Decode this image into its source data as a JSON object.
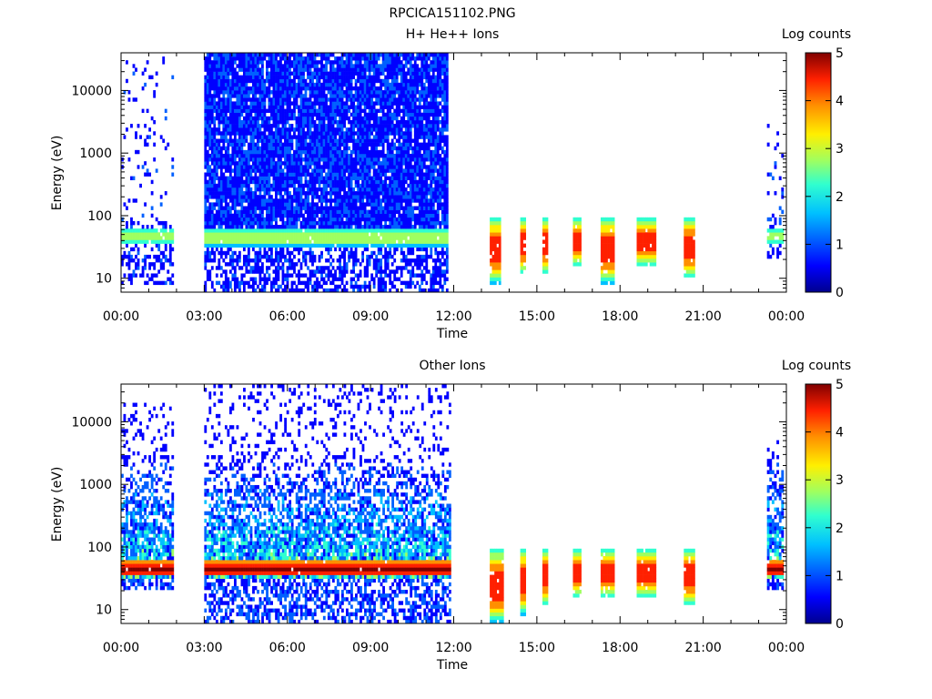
{
  "figure": {
    "title": "RPCICA151102.PNG"
  },
  "colormap": [
    "#00008f",
    "#0000ff",
    "#0060ff",
    "#00c0ff",
    "#30ffcf",
    "#9fff60",
    "#ffef00",
    "#ff8f00",
    "#ff2000",
    "#800000"
  ],
  "chart_data": [
    {
      "type": "heatmap",
      "title": "H+ He++ Ions",
      "xlabel": "Time",
      "ylabel": "Energy (eV)",
      "x_ticks": [
        "00:00",
        "03:00",
        "06:00",
        "09:00",
        "12:00",
        "15:00",
        "18:00",
        "21:00",
        "00:00"
      ],
      "x_range_hours": [
        0,
        24
      ],
      "y_scale": "log",
      "y_ticks": [
        "10",
        "100",
        "1000",
        "10000"
      ],
      "y_range": [
        6,
        40000
      ],
      "colorbar": {
        "label": "Log counts",
        "ticks": [
          "0",
          "1",
          "2",
          "3",
          "4",
          "5"
        ],
        "range": [
          0,
          5
        ]
      },
      "blocks": [
        {
          "start": 0.0,
          "end": 1.9,
          "e_min": 8,
          "e_max": 35000,
          "intensity": "low_with_band"
        },
        {
          "start": 3.0,
          "end": 11.8,
          "e_min": 6,
          "e_max": 40000,
          "intensity": "broad"
        },
        {
          "start": 13.3,
          "end": 13.7,
          "e_min": 8,
          "e_max": 100,
          "intensity": "burst"
        },
        {
          "start": 14.4,
          "end": 14.6,
          "e_min": 12,
          "e_max": 100,
          "intensity": "burst"
        },
        {
          "start": 15.2,
          "end": 15.4,
          "e_min": 12,
          "e_max": 100,
          "intensity": "burst"
        },
        {
          "start": 16.3,
          "end": 16.6,
          "e_min": 15,
          "e_max": 100,
          "intensity": "burst"
        },
        {
          "start": 17.3,
          "end": 17.8,
          "e_min": 8,
          "e_max": 100,
          "intensity": "burst"
        },
        {
          "start": 18.6,
          "end": 19.3,
          "e_min": 15,
          "e_max": 100,
          "intensity": "burst"
        },
        {
          "start": 20.3,
          "end": 20.7,
          "e_min": 10,
          "e_max": 100,
          "intensity": "burst"
        },
        {
          "start": 23.3,
          "end": 23.9,
          "e_min": 20,
          "e_max": 3000,
          "intensity": "low_with_band"
        }
      ]
    },
    {
      "type": "heatmap",
      "title": "Other Ions",
      "xlabel": "Time",
      "ylabel": "Energy (eV)",
      "x_ticks": [
        "00:00",
        "03:00",
        "06:00",
        "09:00",
        "12:00",
        "15:00",
        "18:00",
        "21:00",
        "00:00"
      ],
      "x_range_hours": [
        0,
        24
      ],
      "y_scale": "log",
      "y_ticks": [
        "10",
        "100",
        "1000",
        "10000"
      ],
      "y_range": [
        6,
        40000
      ],
      "colorbar": {
        "label": "Log counts",
        "ticks": [
          "0",
          "1",
          "2",
          "3",
          "4",
          "5"
        ],
        "range": [
          0,
          5
        ]
      },
      "blocks": [
        {
          "start": 0.0,
          "end": 1.9,
          "e_min": 20,
          "e_max": 20000,
          "intensity": "hot_band"
        },
        {
          "start": 3.0,
          "end": 11.9,
          "e_min": 6,
          "e_max": 40000,
          "intensity": "hot_band"
        },
        {
          "start": 13.3,
          "end": 13.8,
          "e_min": 6,
          "e_max": 100,
          "intensity": "burst"
        },
        {
          "start": 14.4,
          "end": 14.6,
          "e_min": 8,
          "e_max": 100,
          "intensity": "burst"
        },
        {
          "start": 15.2,
          "end": 15.4,
          "e_min": 12,
          "e_max": 100,
          "intensity": "burst"
        },
        {
          "start": 16.3,
          "end": 16.6,
          "e_min": 15,
          "e_max": 100,
          "intensity": "burst"
        },
        {
          "start": 17.3,
          "end": 17.8,
          "e_min": 15,
          "e_max": 100,
          "intensity": "burst"
        },
        {
          "start": 18.6,
          "end": 19.3,
          "e_min": 15,
          "e_max": 100,
          "intensity": "burst"
        },
        {
          "start": 20.3,
          "end": 20.7,
          "e_min": 12,
          "e_max": 100,
          "intensity": "burst"
        },
        {
          "start": 23.3,
          "end": 23.9,
          "e_min": 20,
          "e_max": 5000,
          "intensity": "hot_band"
        }
      ]
    }
  ]
}
